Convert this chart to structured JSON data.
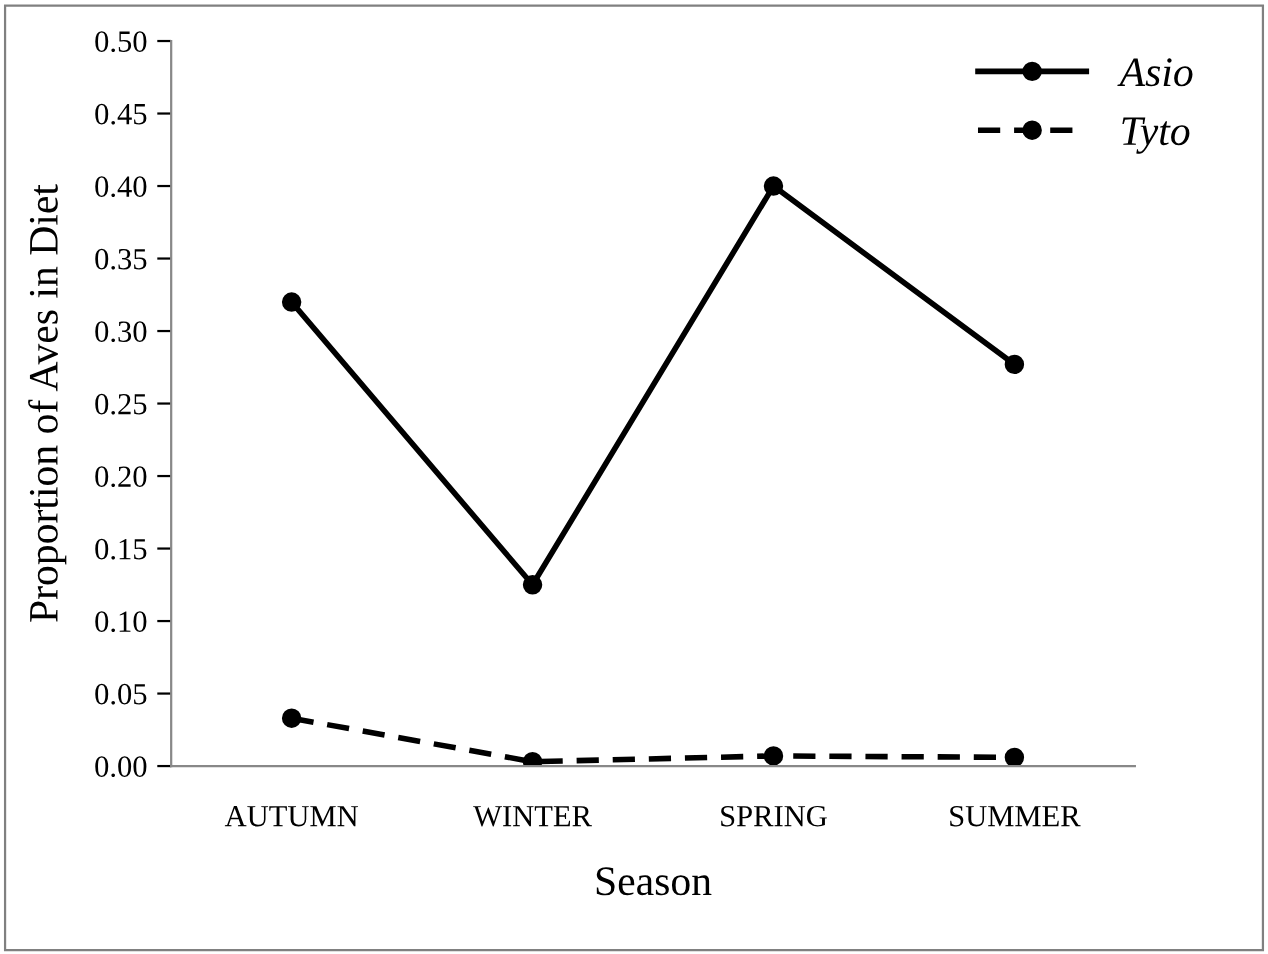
{
  "chart_data": {
    "type": "line",
    "xlabel": "Season",
    "ylabel": "Proportion of Aves in Diet",
    "categories": [
      "AUTUMN",
      "WINTER",
      "SPRING",
      "SUMMER"
    ],
    "series": [
      {
        "name": "Asio",
        "color": "#000000",
        "values": [
          0.32,
          0.125,
          0.4,
          0.277
        ],
        "line_style": "solid"
      },
      {
        "name": "Tyto",
        "color": "#000000",
        "values": [
          0.033,
          0.003,
          0.007,
          0.006
        ],
        "line_style": "dashed"
      }
    ],
    "ylim": [
      0,
      0.5
    ],
    "yticks": [
      {
        "value": 0,
        "label": "0.00"
      },
      {
        "value": 0.05,
        "label": "0.05"
      },
      {
        "value": 0.1,
        "label": "0.10"
      },
      {
        "value": 0.15,
        "label": "0.15"
      },
      {
        "value": 0.2,
        "label": "0.20"
      },
      {
        "value": 0.25,
        "label": "0.25"
      },
      {
        "value": 0.3,
        "label": "0.30"
      },
      {
        "value": 0.35,
        "label": "0.35"
      },
      {
        "value": 0.4,
        "label": "0.40"
      },
      {
        "value": 0.45,
        "label": "0.45"
      },
      {
        "value": 0.5,
        "label": "0.50"
      }
    ],
    "marker": "circle",
    "grid": false,
    "legend": "top right"
  }
}
